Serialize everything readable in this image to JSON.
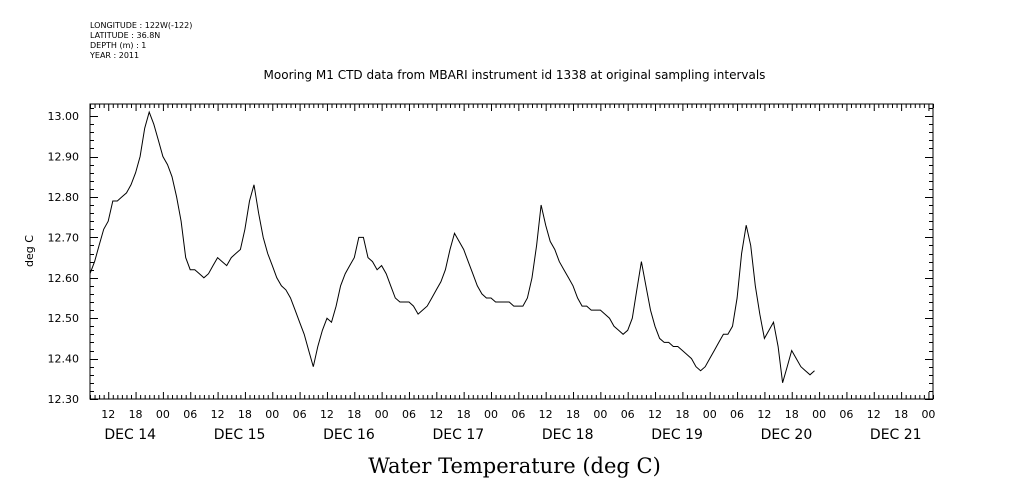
{
  "metadata": {
    "longitude": "LONGITUDE : 122W(-122)",
    "latitude": "LATITUDE : 36.8N",
    "depth": "DEPTH (m) : 1",
    "year": "YEAR : 2011"
  },
  "chart_data": {
    "type": "line",
    "title": "Mooring M1 CTD data from MBARI instrument id 1338 at original sampling intervals",
    "bottom_title": "Water Temperature (deg C)",
    "ylabel": "deg C",
    "xlabel": "",
    "ylim": [
      12.3,
      13.03
    ],
    "y_ticks": [
      "12.30",
      "12.40",
      "12.50",
      "12.60",
      "12.70",
      "12.80",
      "12.90",
      "13.00"
    ],
    "x_range_hours": [
      8,
      193
    ],
    "x_hour_ticks": [
      "12",
      "18",
      "00",
      "06",
      "12",
      "18",
      "00",
      "06",
      "12",
      "18",
      "00",
      "06",
      "12",
      "18",
      "00",
      "06",
      "12",
      "18",
      "00",
      "06",
      "12",
      "18",
      "00",
      "06",
      "12",
      "18",
      "00",
      "06",
      "12",
      "18",
      "00",
      "06"
    ],
    "x_day_labels": [
      "DEC 14",
      "DEC 15",
      "DEC 16",
      "DEC 17",
      "DEC 18",
      "DEC 19",
      "DEC 20",
      "DEC 21"
    ],
    "grid": false,
    "series": [
      {
        "values": [
          [
            8.0,
            12.61
          ],
          [
            9.0,
            12.64
          ],
          [
            10.0,
            12.68
          ],
          [
            11.0,
            12.72
          ],
          [
            12.0,
            12.74
          ],
          [
            13.0,
            12.79
          ],
          [
            14.0,
            12.79
          ],
          [
            15.0,
            12.8
          ],
          [
            16.0,
            12.81
          ],
          [
            17.0,
            12.83
          ],
          [
            18.0,
            12.86
          ],
          [
            19.0,
            12.9
          ],
          [
            20.0,
            12.97
          ],
          [
            21.0,
            13.01
          ],
          [
            22.0,
            12.98
          ],
          [
            23.0,
            12.94
          ],
          [
            24.0,
            12.9
          ],
          [
            25.0,
            12.88
          ],
          [
            26.0,
            12.85
          ],
          [
            27.0,
            12.8
          ],
          [
            28.0,
            12.74
          ],
          [
            29.0,
            12.65
          ],
          [
            30.0,
            12.62
          ],
          [
            31.0,
            12.62
          ],
          [
            32.0,
            12.61
          ],
          [
            33.0,
            12.6
          ],
          [
            34.0,
            12.61
          ],
          [
            35.0,
            12.63
          ],
          [
            36.0,
            12.65
          ],
          [
            37.0,
            12.64
          ],
          [
            38.0,
            12.63
          ],
          [
            39.0,
            12.65
          ],
          [
            40.0,
            12.66
          ],
          [
            41.0,
            12.67
          ],
          [
            42.0,
            12.72
          ],
          [
            43.0,
            12.79
          ],
          [
            44.0,
            12.83
          ],
          [
            45.0,
            12.76
          ],
          [
            46.0,
            12.7
          ],
          [
            47.0,
            12.66
          ],
          [
            48.0,
            12.63
          ],
          [
            49.0,
            12.6
          ],
          [
            50.0,
            12.58
          ],
          [
            51.0,
            12.57
          ],
          [
            52.0,
            12.55
          ],
          [
            53.0,
            12.52
          ],
          [
            54.0,
            12.49
          ],
          [
            55.0,
            12.46
          ],
          [
            56.0,
            12.42
          ],
          [
            57.0,
            12.38
          ],
          [
            58.0,
            12.43
          ],
          [
            59.0,
            12.47
          ],
          [
            60.0,
            12.5
          ],
          [
            61.0,
            12.49
          ],
          [
            62.0,
            12.53
          ],
          [
            63.0,
            12.58
          ],
          [
            64.0,
            12.61
          ],
          [
            65.0,
            12.63
          ],
          [
            66.0,
            12.65
          ],
          [
            67.0,
            12.7
          ],
          [
            68.0,
            12.7
          ],
          [
            69.0,
            12.65
          ],
          [
            70.0,
            12.64
          ],
          [
            71.0,
            12.62
          ],
          [
            72.0,
            12.63
          ],
          [
            73.0,
            12.61
          ],
          [
            74.0,
            12.58
          ],
          [
            75.0,
            12.55
          ],
          [
            76.0,
            12.54
          ],
          [
            77.0,
            12.54
          ],
          [
            78.0,
            12.54
          ],
          [
            79.0,
            12.53
          ],
          [
            80.0,
            12.51
          ],
          [
            81.0,
            12.52
          ],
          [
            82.0,
            12.53
          ],
          [
            83.0,
            12.55
          ],
          [
            84.0,
            12.57
          ],
          [
            85.0,
            12.59
          ],
          [
            86.0,
            12.62
          ],
          [
            87.0,
            12.67
          ],
          [
            88.0,
            12.71
          ],
          [
            89.0,
            12.69
          ],
          [
            90.0,
            12.67
          ],
          [
            91.0,
            12.64
          ],
          [
            92.0,
            12.61
          ],
          [
            93.0,
            12.58
          ],
          [
            94.0,
            12.56
          ],
          [
            95.0,
            12.55
          ],
          [
            96.0,
            12.55
          ],
          [
            97.0,
            12.54
          ],
          [
            98.0,
            12.54
          ],
          [
            99.0,
            12.54
          ],
          [
            100.0,
            12.54
          ],
          [
            101.0,
            12.53
          ],
          [
            102.0,
            12.53
          ],
          [
            103.0,
            12.53
          ],
          [
            104.0,
            12.55
          ],
          [
            105.0,
            12.6
          ],
          [
            106.0,
            12.68
          ],
          [
            107.0,
            12.78
          ],
          [
            108.0,
            12.73
          ],
          [
            109.0,
            12.69
          ],
          [
            110.0,
            12.67
          ],
          [
            111.0,
            12.64
          ],
          [
            112.0,
            12.62
          ],
          [
            113.0,
            12.6
          ],
          [
            114.0,
            12.58
          ],
          [
            115.0,
            12.55
          ],
          [
            116.0,
            12.53
          ],
          [
            117.0,
            12.53
          ],
          [
            118.0,
            12.52
          ],
          [
            119.0,
            12.52
          ],
          [
            120.0,
            12.52
          ],
          [
            121.0,
            12.51
          ],
          [
            122.0,
            12.5
          ],
          [
            123.0,
            12.48
          ],
          [
            124.0,
            12.47
          ],
          [
            125.0,
            12.46
          ],
          [
            126.0,
            12.47
          ],
          [
            127.0,
            12.5
          ],
          [
            128.0,
            12.57
          ],
          [
            129.0,
            12.64
          ],
          [
            130.0,
            12.58
          ],
          [
            131.0,
            12.52
          ],
          [
            132.0,
            12.48
          ],
          [
            133.0,
            12.45
          ],
          [
            134.0,
            12.44
          ],
          [
            135.0,
            12.44
          ],
          [
            136.0,
            12.43
          ],
          [
            137.0,
            12.43
          ],
          [
            138.0,
            12.42
          ],
          [
            139.0,
            12.41
          ],
          [
            140.0,
            12.4
          ],
          [
            141.0,
            12.38
          ],
          [
            142.0,
            12.37
          ],
          [
            143.0,
            12.38
          ],
          [
            144.0,
            12.4
          ],
          [
            145.0,
            12.42
          ],
          [
            146.0,
            12.44
          ],
          [
            147.0,
            12.46
          ],
          [
            148.0,
            12.46
          ],
          [
            149.0,
            12.48
          ],
          [
            150.0,
            12.55
          ],
          [
            151.0,
            12.66
          ],
          [
            152.0,
            12.73
          ],
          [
            153.0,
            12.68
          ],
          [
            154.0,
            12.58
          ],
          [
            155.0,
            12.51
          ],
          [
            156.0,
            12.45
          ],
          [
            157.0,
            12.47
          ],
          [
            158.0,
            12.49
          ],
          [
            159.0,
            12.43
          ],
          [
            160.0,
            12.34
          ],
          [
            161.0,
            12.38
          ],
          [
            162.0,
            12.42
          ],
          [
            163.0,
            12.4
          ],
          [
            164.0,
            12.38
          ],
          [
            165.0,
            12.37
          ],
          [
            166.0,
            12.36
          ],
          [
            167.0,
            12.37
          ]
        ]
      }
    ]
  }
}
